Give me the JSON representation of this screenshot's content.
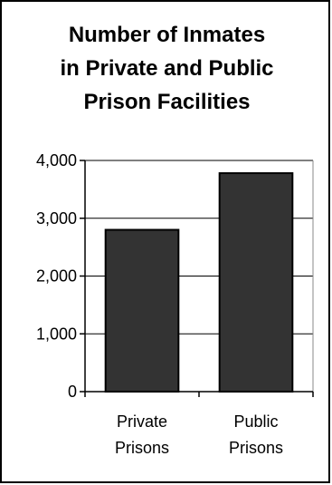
{
  "chart_data": {
    "type": "bar",
    "title_lines": [
      "Number of Inmates",
      "in Private and Public",
      "Prison Facilities"
    ],
    "categories": [
      [
        "Private",
        "Prisons"
      ],
      [
        "Public",
        "Prisons"
      ]
    ],
    "values": [
      2800,
      3780
    ],
    "ylim": [
      0,
      4000
    ],
    "yticks": [
      0,
      1000,
      2000,
      3000,
      4000
    ],
    "ytick_labels": [
      "0",
      "1,000",
      "2,000",
      "3,000",
      "4,000"
    ],
    "xlabel": "",
    "ylabel": "",
    "grid": true,
    "legend": "none",
    "bar_color": "#333333",
    "bar_outline": "#000000",
    "grid_color": "#000000"
  }
}
